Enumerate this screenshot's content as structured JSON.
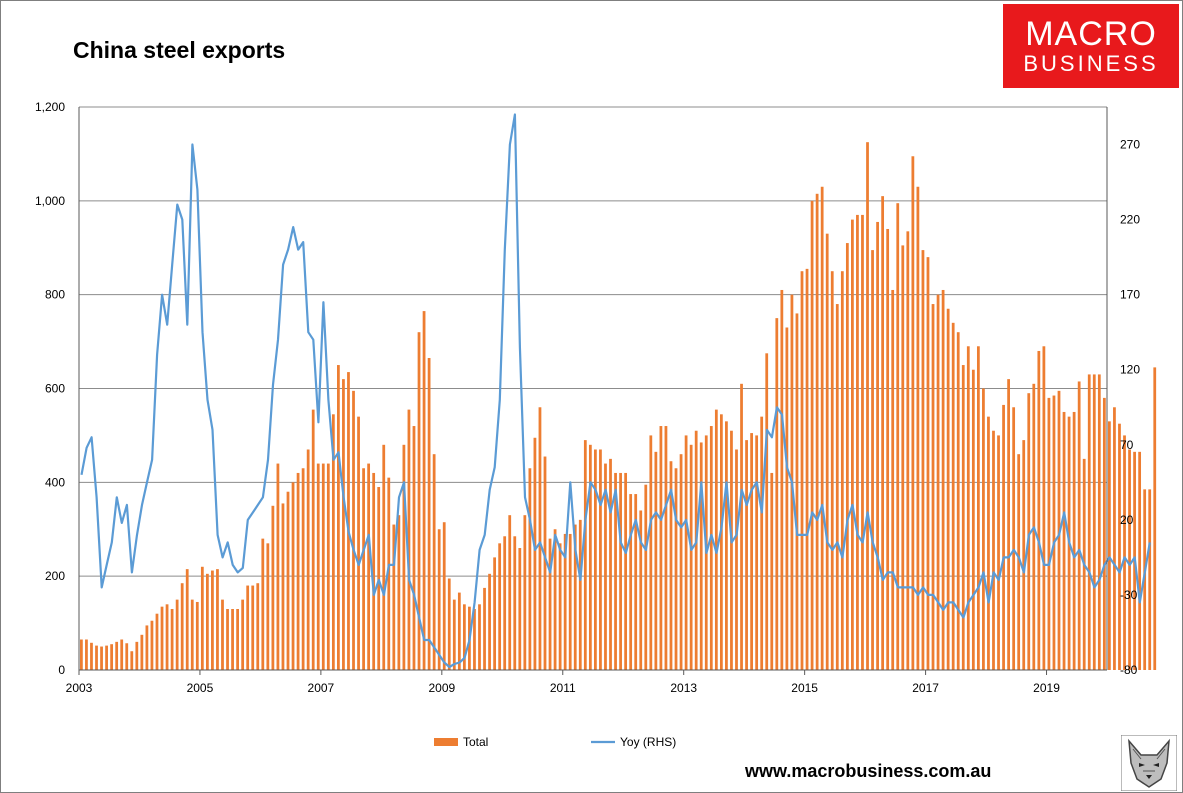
{
  "header": {
    "title": "China steel exports"
  },
  "logo": {
    "line1": "MACRO",
    "line2": "BUSINESS"
  },
  "footer": {
    "url": "www.macrobusiness.com.au"
  },
  "colors": {
    "bars": "#ed7d31",
    "line": "#5b9bd5",
    "grid": "#8c8c8c",
    "logo_bg": "#e8191c"
  },
  "chart_data": {
    "type": "bar+line",
    "title": "China steel exports",
    "x_tick_labels": [
      "2003",
      "2005",
      "2007",
      "2009",
      "2011",
      "2013",
      "2015",
      "2017",
      "2019"
    ],
    "x_range": [
      2003.0,
      2020.0
    ],
    "left_axis": {
      "ylim": [
        0,
        1200
      ],
      "tick_labels": [
        "0",
        "200",
        "400",
        "600",
        "800",
        "1,000",
        "1,200"
      ],
      "tick_values": [
        0,
        200,
        400,
        600,
        800,
        1000,
        1200
      ]
    },
    "right_axis": {
      "ylim": [
        -80,
        295
      ],
      "tick_labels": [
        "-80",
        "-30",
        "20",
        "70",
        "120",
        "170",
        "220",
        "270"
      ],
      "tick_values": [
        -80,
        -30,
        20,
        70,
        120,
        170,
        220,
        270
      ]
    },
    "grid": true,
    "legend_position": "bottom",
    "series": [
      {
        "name": "Total",
        "type": "bar",
        "axis": "left",
        "start_year": 2003,
        "start_month": 1,
        "values": [
          65,
          65,
          58,
          52,
          50,
          52,
          55,
          60,
          65,
          57,
          40,
          60,
          75,
          95,
          105,
          120,
          135,
          140,
          130,
          150,
          185,
          215,
          150,
          145,
          220,
          205,
          212,
          215,
          150,
          130,
          130,
          130,
          150,
          180,
          180,
          185,
          280,
          270,
          350,
          440,
          355,
          380,
          400,
          420,
          430,
          470,
          555,
          440,
          440,
          440,
          545,
          650,
          620,
          635,
          595,
          540,
          430,
          440,
          420,
          390,
          480,
          410,
          310,
          330,
          480,
          555,
          520,
          720,
          765,
          665,
          460,
          300,
          315,
          195,
          150,
          165,
          140,
          135,
          130,
          140,
          175,
          205,
          240,
          270,
          285,
          330,
          285,
          260,
          330,
          430,
          495,
          560,
          455,
          280,
          300,
          270,
          290,
          290,
          310,
          320,
          490,
          480,
          470,
          470,
          440,
          450,
          420,
          420,
          420,
          375,
          375,
          340,
          395,
          500,
          465,
          520,
          520,
          445,
          430,
          460,
          500,
          480,
          510,
          485,
          500,
          520,
          555,
          545,
          530,
          510,
          470,
          610,
          490,
          505,
          500,
          540,
          675,
          420,
          750,
          810,
          730,
          800,
          760,
          850,
          855,
          1000,
          1015,
          1030,
          930,
          850,
          780,
          850,
          910,
          960,
          970,
          970,
          1125,
          895,
          955,
          1010,
          940,
          810,
          995,
          905,
          935,
          1095,
          1030,
          895,
          880,
          780,
          800,
          810,
          770,
          740,
          720,
          650,
          690,
          640,
          690,
          600,
          540,
          510,
          500,
          565,
          620,
          560,
          460,
          490,
          590,
          610,
          680,
          690,
          580,
          585,
          595,
          550,
          540,
          550,
          615,
          450,
          630,
          630,
          630,
          580,
          530,
          560,
          525,
          500,
          470,
          465,
          465,
          385,
          385,
          645
        ]
      },
      {
        "name": "Yoy (RHS)",
        "type": "line",
        "axis": "right",
        "start_year": 2003,
        "start_month": 1,
        "values": [
          50,
          68,
          75,
          35,
          -25,
          -10,
          5,
          35,
          18,
          30,
          -15,
          10,
          30,
          45,
          60,
          130,
          170,
          150,
          190,
          230,
          220,
          150,
          270,
          240,
          145,
          100,
          80,
          10,
          -5,
          5,
          -10,
          -15,
          -12,
          20,
          25,
          30,
          35,
          60,
          110,
          140,
          190,
          200,
          215,
          200,
          205,
          145,
          140,
          85,
          165,
          100,
          60,
          65,
          35,
          12,
          0,
          -10,
          0,
          10,
          -30,
          -20,
          -30,
          -10,
          -10,
          35,
          45,
          -20,
          -30,
          -45,
          -60,
          -60,
          -65,
          -70,
          -75,
          -78,
          -76,
          -75,
          -72,
          -60,
          -35,
          0,
          10,
          40,
          55,
          100,
          200,
          270,
          290,
          135,
          35,
          20,
          0,
          5,
          -5,
          -15,
          10,
          0,
          -5,
          45,
          0,
          -20,
          20,
          45,
          40,
          30,
          40,
          25,
          40,
          5,
          -2,
          10,
          20,
          5,
          0,
          20,
          25,
          20,
          30,
          40,
          20,
          15,
          20,
          0,
          5,
          45,
          -2,
          10,
          -2,
          15,
          45,
          5,
          10,
          40,
          30,
          40,
          45,
          25,
          80,
          75,
          95,
          90,
          55,
          45,
          10,
          10,
          10,
          25,
          20,
          30,
          5,
          0,
          5,
          -5,
          20,
          30,
          10,
          5,
          25,
          5,
          -5,
          -20,
          -15,
          -15,
          -25,
          -25,
          -25,
          -25,
          -30,
          -25,
          -30,
          -30,
          -35,
          -40,
          -35,
          -35,
          -40,
          -45,
          -35,
          -30,
          -25,
          -15,
          -35,
          -15,
          -20,
          -5,
          -5,
          0,
          -5,
          -15,
          10,
          15,
          5,
          -10,
          -10,
          5,
          10,
          25,
          5,
          -5,
          0,
          -10,
          -15,
          -25,
          -20,
          -10,
          -5,
          -10,
          -15,
          -5,
          -10,
          -5,
          -35,
          -15,
          5
        ]
      }
    ]
  }
}
